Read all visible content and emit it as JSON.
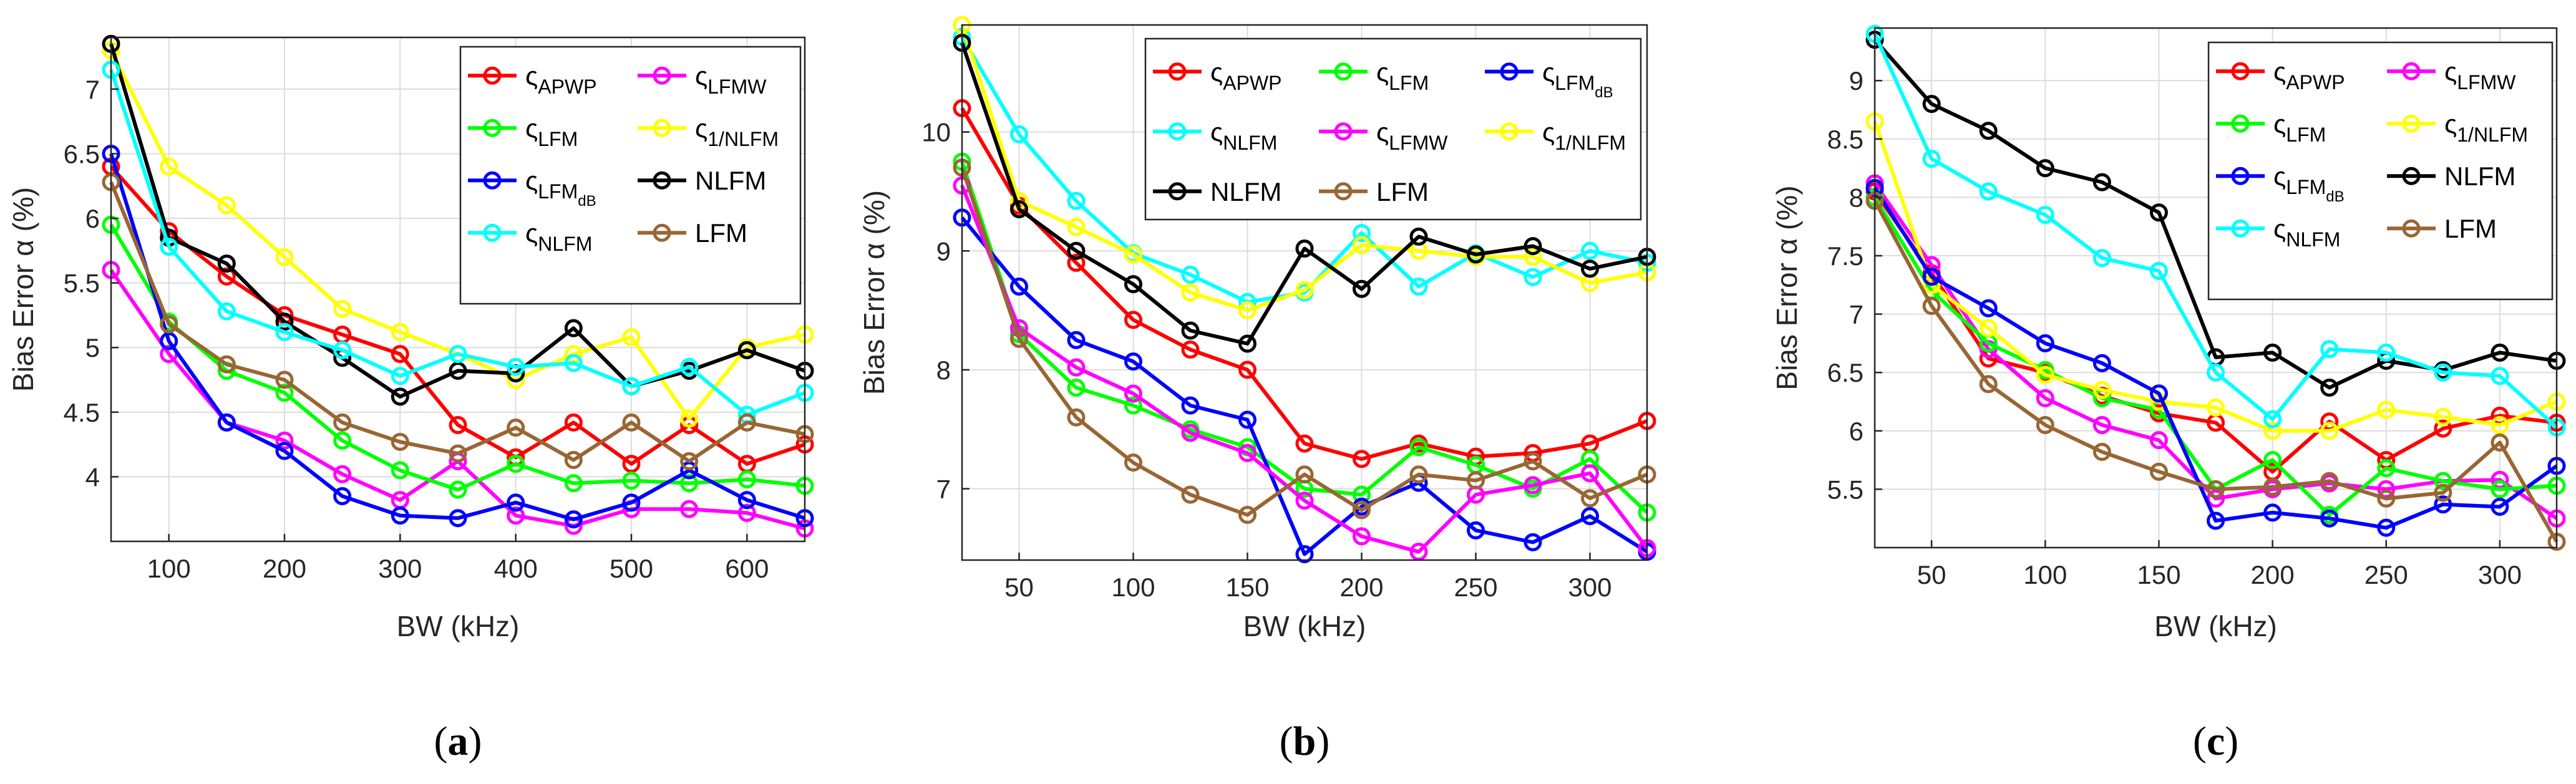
{
  "chart_data": [
    {
      "type": "line",
      "panel_label": "(a)",
      "panel_label_parts": {
        "open": "(",
        "letter": "a",
        "close": ")"
      },
      "xlabel": "BW (kHz)",
      "ylabel": "Bias Error  α (%)",
      "xlim": [
        50,
        650
      ],
      "ylim": [
        3.5,
        7.4
      ],
      "xticks": [
        100,
        200,
        300,
        400,
        500,
        600
      ],
      "yticks": [
        4,
        4.5,
        5,
        5.5,
        6,
        6.5,
        7
      ],
      "ytick_labels": [
        "4",
        "4.5",
        "5",
        "5.5",
        "6",
        "6.5",
        "7"
      ],
      "grid": true,
      "legend": {
        "placement": "top-right",
        "columns": 2
      },
      "x": [
        50,
        100,
        150,
        200,
        250,
        300,
        350,
        400,
        450,
        500,
        550,
        600,
        650
      ],
      "series": [
        {
          "name": "ς",
          "sub": "APWP",
          "color": "#ff0000",
          "values": [
            6.4,
            5.9,
            5.55,
            5.25,
            5.1,
            4.95,
            4.4,
            4.15,
            4.42,
            4.1,
            4.4,
            4.1,
            4.25
          ]
        },
        {
          "name": "ς",
          "sub": "LFMW",
          "color": "#ff00ff",
          "values": [
            5.6,
            4.95,
            4.42,
            4.28,
            4.02,
            3.82,
            4.12,
            3.7,
            3.62,
            3.75,
            3.75,
            3.72,
            3.6
          ]
        },
        {
          "name": "ς",
          "sub": "LFM",
          "color": "#00ff00",
          "values": [
            5.95,
            5.2,
            4.82,
            4.65,
            4.28,
            4.05,
            3.9,
            4.1,
            3.95,
            3.97,
            3.95,
            3.98,
            3.93
          ]
        },
        {
          "name": "ς",
          "sub": "1/NLFM",
          "color": "#ffff00",
          "values": [
            7.3,
            6.4,
            6.1,
            5.7,
            5.3,
            5.12,
            4.95,
            4.75,
            4.95,
            5.08,
            4.45,
            5.0,
            5.1
          ]
        },
        {
          "name": "ς",
          "sub": "LFM",
          "sub2": "dB",
          "color": "#0000ff",
          "values": [
            6.5,
            5.05,
            4.42,
            4.2,
            3.85,
            3.7,
            3.68,
            3.8,
            3.67,
            3.8,
            4.05,
            3.82,
            3.68
          ]
        },
        {
          "name": "NLFM",
          "color": "#000000",
          "values": [
            7.35,
            5.85,
            5.65,
            5.2,
            4.92,
            4.62,
            4.82,
            4.8,
            5.15,
            4.7,
            4.82,
            4.98,
            4.82
          ]
        },
        {
          "name": "ς",
          "sub": "NLFM",
          "color": "#00ffff",
          "values": [
            7.15,
            5.78,
            5.28,
            5.12,
            4.98,
            4.78,
            4.95,
            4.85,
            4.88,
            4.7,
            4.85,
            4.48,
            4.65
          ]
        },
        {
          "name": "LFM",
          "color": "#996633",
          "values": [
            6.28,
            5.18,
            4.87,
            4.75,
            4.42,
            4.27,
            4.18,
            4.38,
            4.13,
            4.42,
            4.12,
            4.42,
            4.33
          ]
        }
      ]
    },
    {
      "type": "line",
      "panel_label": "(b)",
      "panel_label_parts": {
        "open": "(",
        "letter": "b",
        "close": ")"
      },
      "xlabel": "BW (kHz)",
      "ylabel": "Bias Error  α (%)",
      "xlim": [
        25,
        325
      ],
      "ylim": [
        6.4,
        10.9
      ],
      "xticks": [
        50,
        100,
        150,
        200,
        250,
        300
      ],
      "yticks": [
        7,
        8,
        9,
        10
      ],
      "ytick_labels": [
        "7",
        "8",
        "9",
        "10"
      ],
      "grid": true,
      "legend": {
        "placement": "top",
        "columns": 3
      },
      "x": [
        25,
        50,
        75,
        100,
        125,
        150,
        175,
        200,
        225,
        250,
        275,
        300,
        325
      ],
      "series": [
        {
          "name": "ς",
          "sub": "APWP",
          "color": "#ff0000",
          "values": [
            10.2,
            9.38,
            8.9,
            8.42,
            8.17,
            8.0,
            7.38,
            7.25,
            7.38,
            7.27,
            7.3,
            7.38,
            7.57
          ]
        },
        {
          "name": "ς",
          "sub": "LFM",
          "color": "#00ff00",
          "values": [
            9.75,
            8.3,
            7.85,
            7.7,
            7.5,
            7.35,
            7.0,
            6.95,
            7.35,
            7.2,
            7.0,
            7.25,
            6.8
          ]
        },
        {
          "name": "ς",
          "sub": "LFM",
          "sub2": "dB",
          "color": "#0000ff",
          "values": [
            9.28,
            8.7,
            8.25,
            8.07,
            7.7,
            7.58,
            6.45,
            6.85,
            7.05,
            6.65,
            6.55,
            6.77,
            6.47
          ]
        },
        {
          "name": "ς",
          "sub": "NLFM",
          "color": "#00ffff",
          "values": [
            10.8,
            9.98,
            9.42,
            8.98,
            8.8,
            8.57,
            8.65,
            9.15,
            8.7,
            8.98,
            8.78,
            9.0,
            8.9
          ]
        },
        {
          "name": "ς",
          "sub": "LFMW",
          "color": "#ff00ff",
          "values": [
            9.55,
            8.35,
            8.02,
            7.8,
            7.47,
            7.3,
            6.9,
            6.6,
            6.47,
            6.95,
            7.03,
            7.13,
            6.5
          ]
        },
        {
          "name": "ς",
          "sub": "1/NLFM",
          "color": "#ffff00",
          "values": [
            10.9,
            9.42,
            9.2,
            8.97,
            8.65,
            8.5,
            8.67,
            9.05,
            9.0,
            8.95,
            8.95,
            8.73,
            8.82
          ]
        },
        {
          "name": "NLFM",
          "color": "#000000",
          "values": [
            10.75,
            9.35,
            9.0,
            8.72,
            8.33,
            8.22,
            9.02,
            8.68,
            9.12,
            8.97,
            9.04,
            8.85,
            8.95
          ]
        },
        {
          "name": "LFM",
          "color": "#996633",
          "values": [
            9.7,
            8.26,
            7.6,
            7.22,
            6.95,
            6.78,
            7.12,
            6.82,
            7.12,
            7.07,
            7.23,
            6.92,
            7.12
          ]
        }
      ]
    },
    {
      "type": "line",
      "panel_label": "(c)",
      "panel_label_parts": {
        "open": "(",
        "letter": "c",
        "close": ")"
      },
      "xlabel": "BW (kHz)",
      "ylabel": "Bias Error  α (%)",
      "xlim": [
        25,
        325
      ],
      "ylim": [
        5.0,
        9.45
      ],
      "xticks": [
        50,
        100,
        150,
        200,
        250,
        300
      ],
      "yticks": [
        5.5,
        6,
        6.5,
        7,
        7.5,
        8,
        8.5,
        9
      ],
      "ytick_labels": [
        "5.5",
        "6",
        "6.5",
        "7",
        "7.5",
        "8",
        "8.5",
        "9"
      ],
      "grid": true,
      "legend": {
        "placement": "top-right",
        "columns": 2
      },
      "x": [
        25,
        50,
        75,
        100,
        125,
        150,
        175,
        200,
        225,
        250,
        275,
        300,
        325
      ],
      "series": [
        {
          "name": "ς",
          "sub": "APWP",
          "color": "#ff0000",
          "values": [
            8.05,
            7.35,
            6.62,
            6.5,
            6.3,
            6.15,
            6.07,
            5.65,
            6.08,
            5.75,
            6.02,
            6.13,
            6.07
          ]
        },
        {
          "name": "ς",
          "sub": "LFMW",
          "color": "#ff00ff",
          "values": [
            8.12,
            7.42,
            6.7,
            6.28,
            6.05,
            5.92,
            5.42,
            5.5,
            5.55,
            5.5,
            5.57,
            5.58,
            5.25
          ]
        },
        {
          "name": "ς",
          "sub": "LFM",
          "color": "#00ff00",
          "values": [
            8.0,
            7.2,
            6.75,
            6.52,
            6.28,
            6.18,
            5.5,
            5.75,
            5.28,
            5.68,
            5.57,
            5.5,
            5.53
          ]
        },
        {
          "name": "ς",
          "sub": "1/NLFM",
          "color": "#ffff00",
          "values": [
            8.65,
            7.25,
            6.88,
            6.48,
            6.35,
            6.25,
            6.2,
            6.0,
            6.0,
            6.18,
            6.12,
            6.05,
            6.25
          ]
        },
        {
          "name": "ς",
          "sub": "LFM",
          "sub2": "dB",
          "color": "#0000ff",
          "values": [
            8.08,
            7.32,
            7.05,
            6.75,
            6.58,
            6.32,
            5.23,
            5.3,
            5.25,
            5.17,
            5.37,
            5.35,
            5.7
          ]
        },
        {
          "name": "NLFM",
          "color": "#000000",
          "values": [
            9.35,
            8.8,
            8.57,
            8.25,
            8.13,
            7.87,
            6.63,
            6.67,
            6.37,
            6.6,
            6.52,
            6.67,
            6.6
          ]
        },
        {
          "name": "ς",
          "sub": "NLFM",
          "color": "#00ffff",
          "values": [
            9.4,
            8.33,
            8.05,
            7.85,
            7.48,
            7.37,
            6.5,
            6.1,
            6.7,
            6.67,
            6.5,
            6.47,
            6.03
          ]
        },
        {
          "name": "LFM",
          "color": "#996633",
          "values": [
            7.97,
            7.07,
            6.4,
            6.05,
            5.82,
            5.65,
            5.5,
            5.52,
            5.57,
            5.42,
            5.47,
            5.9,
            5.05
          ]
        }
      ]
    }
  ]
}
